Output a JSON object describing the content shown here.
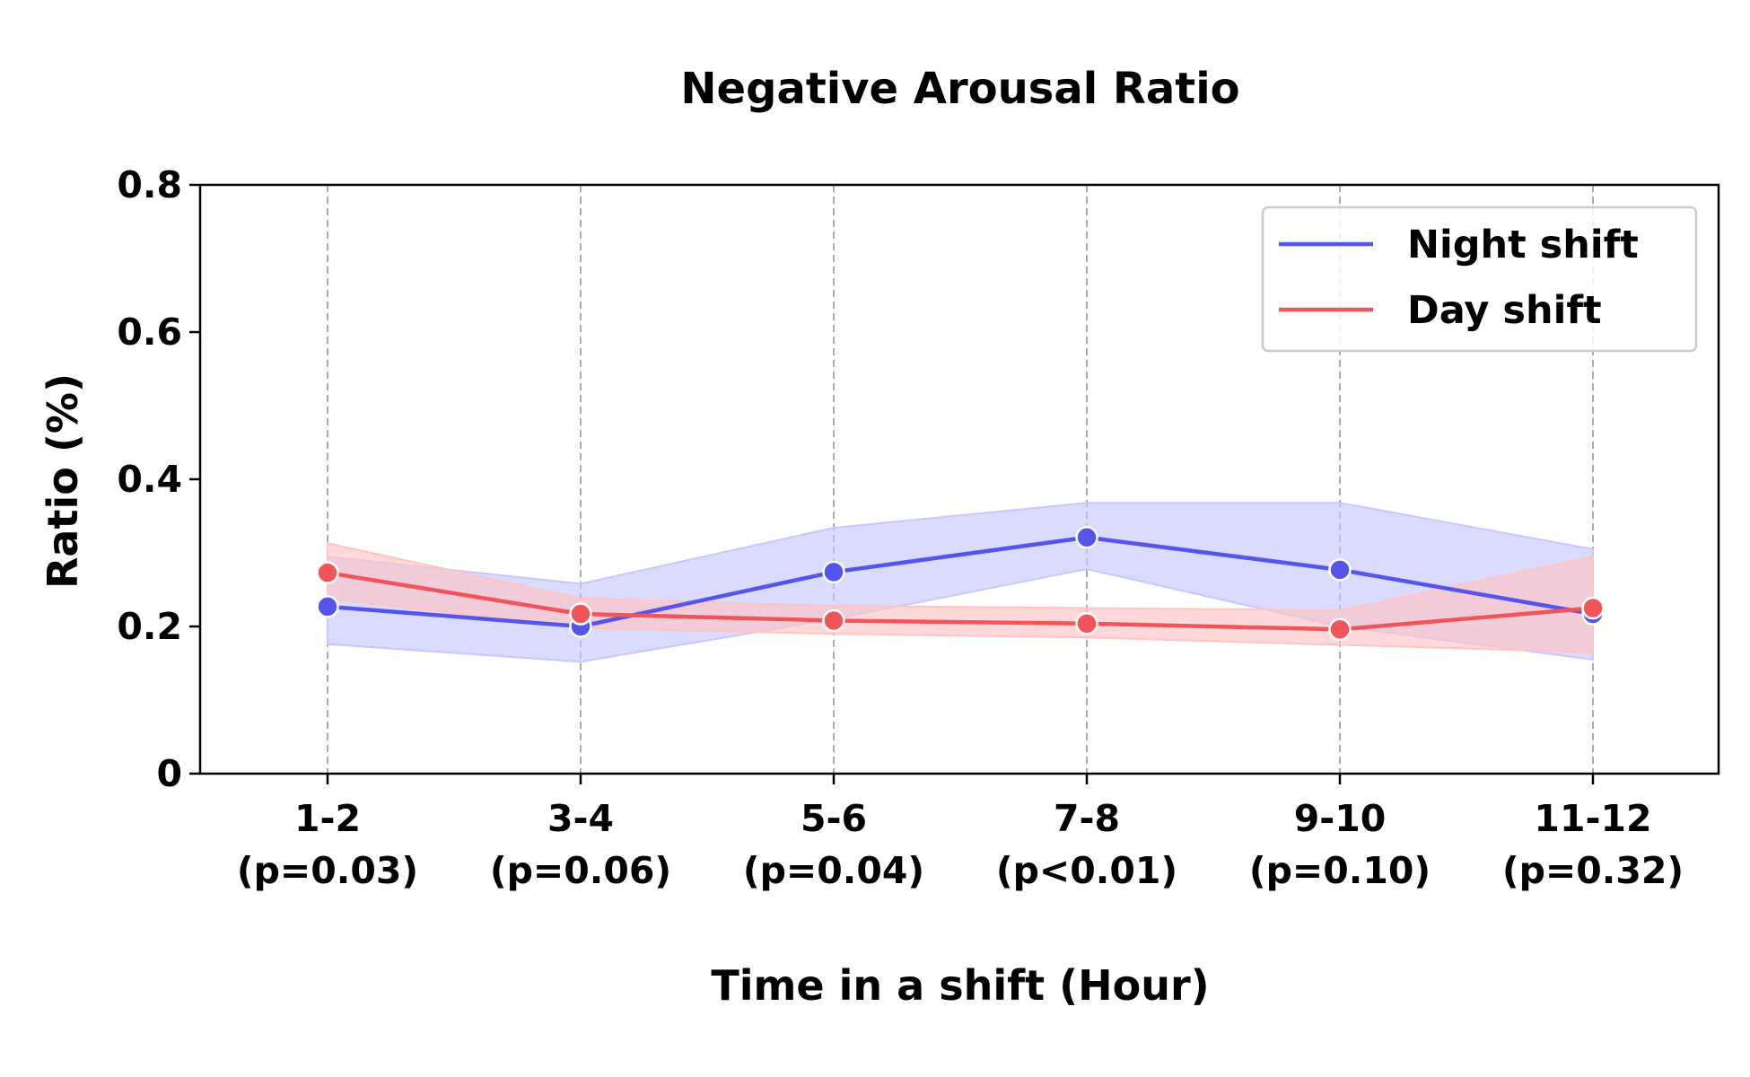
{
  "chart_data": {
    "type": "line",
    "title": "Negative Arousal Ratio",
    "xlabel": "Time in a shift (Hour)",
    "ylabel": "Ratio (%)",
    "categories": [
      "1-2",
      "3-4",
      "5-6",
      "7-8",
      "9-10",
      "11-12"
    ],
    "category_pvalues": [
      "(p=0.03)",
      "(p=0.06)",
      "(p=0.04)",
      "(p<0.01)",
      "(p=0.10)",
      "(p=0.32)"
    ],
    "ylim": [
      0,
      0.8
    ],
    "yticks": [
      0,
      0.2,
      0.4,
      0.6,
      0.8
    ],
    "ytick_labels": [
      "0",
      "0.2",
      "0.4",
      "0.6",
      "0.8"
    ],
    "grid": "vertical dashed",
    "legend_position": "top-right",
    "series": [
      {
        "name": "Night shift",
        "color": "#5555ee",
        "band_color": "#c8c8ff",
        "values": [
          0.227,
          0.2,
          0.274,
          0.321,
          0.277,
          0.217
        ],
        "upper": [
          0.295,
          0.258,
          0.334,
          0.368,
          0.368,
          0.305
        ],
        "lower": [
          0.176,
          0.152,
          0.21,
          0.278,
          0.2,
          0.155
        ]
      },
      {
        "name": "Day shift",
        "color": "#f25559",
        "band_color": "#ffc4c4",
        "values": [
          0.273,
          0.217,
          0.208,
          0.204,
          0.196,
          0.225
        ],
        "upper": [
          0.313,
          0.238,
          0.228,
          0.225,
          0.222,
          0.295
        ],
        "lower": [
          0.238,
          0.198,
          0.19,
          0.185,
          0.175,
          0.165
        ]
      }
    ]
  }
}
